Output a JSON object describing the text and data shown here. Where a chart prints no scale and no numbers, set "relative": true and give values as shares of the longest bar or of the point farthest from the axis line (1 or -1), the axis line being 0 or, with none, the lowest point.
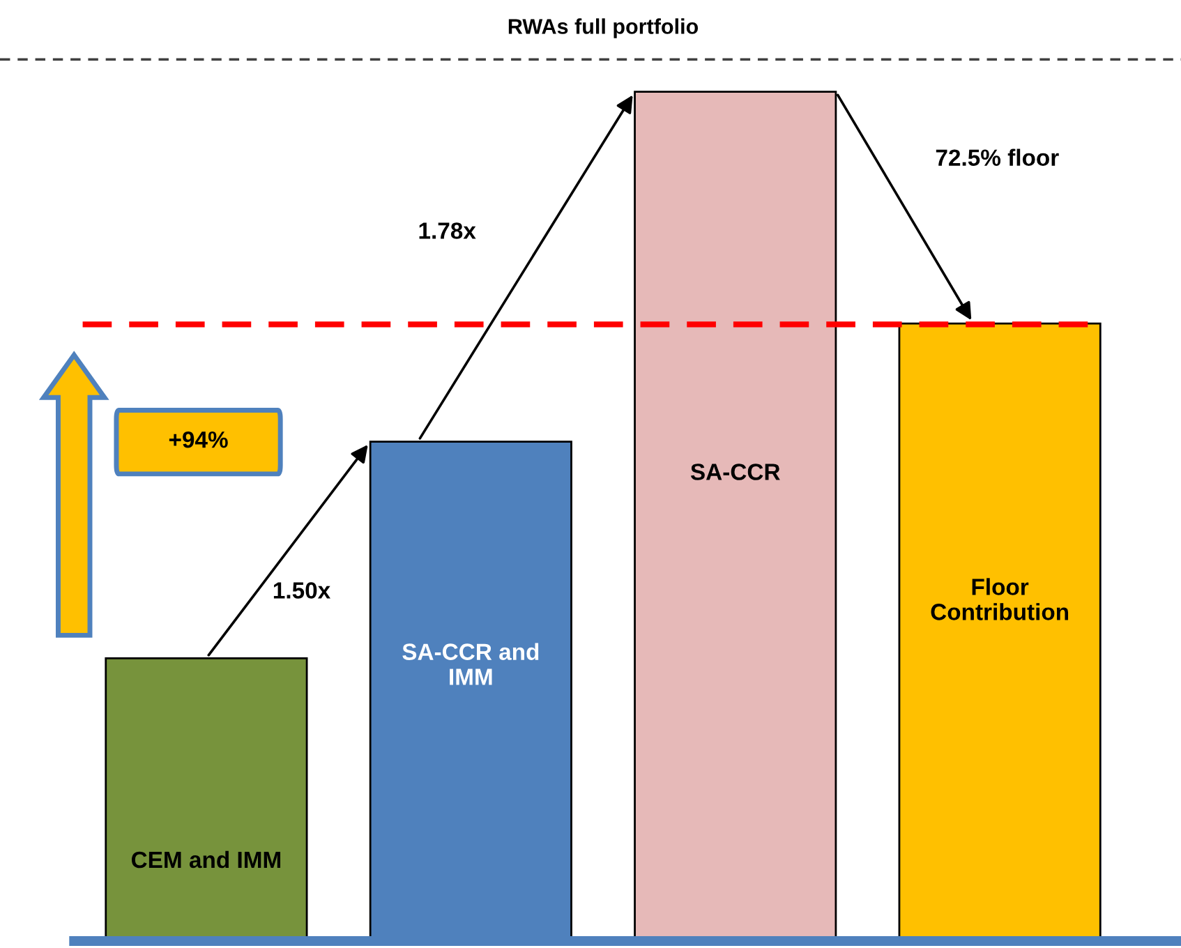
{
  "chart_data": {
    "type": "bar",
    "relative": true,
    "categories": [
      "CEM and IMM",
      "SA-CCR and\nIMM",
      "SA-CCR",
      "Floor\nContribution"
    ],
    "values": [
      0.333,
      0.588,
      1.0,
      0.727
    ],
    "colors": [
      "#77933c",
      "#4f81bd",
      "#e6b9b8",
      "#ffc000"
    ],
    "ref_lines": [
      {
        "axis": "y",
        "value": 1.038,
        "label": "RWAs full portfolio",
        "color": "#404040",
        "line_style": "dashed"
      },
      {
        "axis": "y",
        "value": 0.726,
        "label": null,
        "color": "#ff0000",
        "line_style": "dashed"
      }
    ],
    "annotations": [
      "+94%",
      "1.50x",
      "1.78x",
      "72.5% floor"
    ],
    "legend": false
  }
}
